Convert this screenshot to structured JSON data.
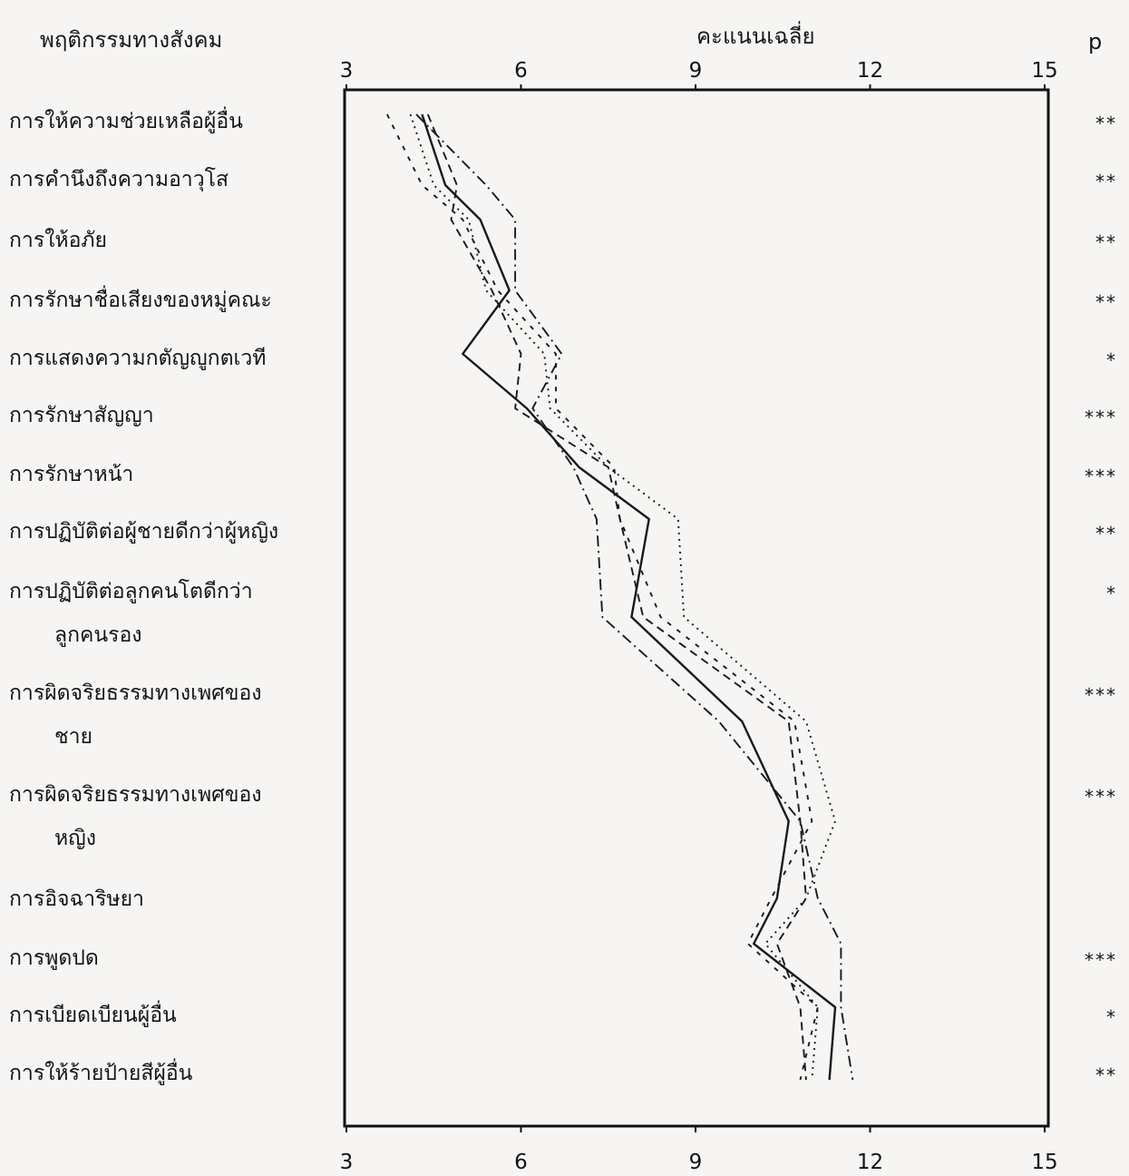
{
  "header": {
    "behavior_heading": "พฤติกรรมทางสังคม",
    "score_heading": "คะแนนเฉลี่ย",
    "p_heading": "p"
  },
  "chart_data": {
    "type": "line",
    "title": "",
    "xlabel": "คะแนนเฉลี่ย",
    "xlim": [
      3,
      15
    ],
    "x_ticks": [
      3,
      6,
      9,
      12,
      15
    ],
    "grid": false,
    "orientation": "horizontal-profile",
    "categories": [
      {
        "label": [
          "การให้ความช่วยเหลือผู้อื่น"
        ],
        "p": "**"
      },
      {
        "label": [
          "การคำนึงถึงความอาวุโส"
        ],
        "p": "**"
      },
      {
        "label": [
          "การให้อภัย"
        ],
        "p": "**"
      },
      {
        "label": [
          "การรักษาชื่อเสียงของหมู่คณะ"
        ],
        "p": "**"
      },
      {
        "label": [
          "การแสดงความกตัญญูกตเวที"
        ],
        "p": "*"
      },
      {
        "label": [
          "การรักษาสัญญา"
        ],
        "p": "***"
      },
      {
        "label": [
          "การรักษาหน้า"
        ],
        "p": "***"
      },
      {
        "label": [
          "การปฏิบัติต่อผู้ชายดีกว่าผู้หญิง"
        ],
        "p": "**"
      },
      {
        "label": [
          "การปฏิบัติต่อลูกคนโตดีกว่า",
          "ลูกคนรอง"
        ],
        "p": "*"
      },
      {
        "label": [
          "การผิดจริยธรรมทางเพศของ",
          "ชาย"
        ],
        "p": "***"
      },
      {
        "label": [
          "การผิดจริยธรรมทางเพศของ",
          "หญิง"
        ],
        "p": "***"
      },
      {
        "label": [
          "การอิจฉาริษยา"
        ],
        "p": ""
      },
      {
        "label": [
          "การพูดปด"
        ],
        "p": "***"
      },
      {
        "label": [
          "การเบียดเบียนผู้อื่น"
        ],
        "p": "*"
      },
      {
        "label": [
          "การให้ร้ายป้ายสีผู้อื่น"
        ],
        "p": "**"
      }
    ],
    "series": [
      {
        "style": "solid",
        "values": [
          4.3,
          4.7,
          5.3,
          5.8,
          5.0,
          6.1,
          7.0,
          8.2,
          7.9,
          9.8,
          10.6,
          10.4,
          10.0,
          11.4,
          11.3
        ]
      },
      {
        "style": "dashed",
        "values": [
          4.4,
          4.9,
          4.8,
          5.5,
          6.0,
          5.9,
          7.5,
          7.7,
          8.1,
          10.6,
          10.8,
          10.9,
          10.4,
          10.8,
          10.9
        ]
      },
      {
        "style": "dotted",
        "values": [
          4.1,
          4.5,
          5.1,
          5.4,
          6.4,
          6.5,
          7.5,
          8.7,
          8.8,
          10.9,
          11.4,
          10.9,
          10.2,
          11.1,
          11.0
        ]
      },
      {
        "style": "dashdot",
        "values": [
          4.2,
          5.4,
          5.9,
          5.9,
          6.7,
          6.2,
          6.9,
          7.3,
          7.4,
          9.4,
          10.8,
          11.1,
          11.5,
          11.5,
          11.7
        ]
      },
      {
        "style": "loosedash",
        "values": [
          3.7,
          4.3,
          5.0,
          5.6,
          6.6,
          6.6,
          7.6,
          7.7,
          8.4,
          10.7,
          11.0,
          10.3,
          9.9,
          11.1,
          10.8
        ]
      }
    ]
  }
}
